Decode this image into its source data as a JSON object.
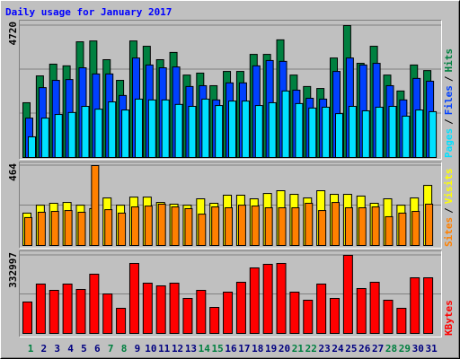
{
  "chart_data": [
    {
      "type": "bar",
      "title": "Daily usage for January 2017",
      "ylim": [
        0,
        4720
      ],
      "yticks": [
        4720
      ],
      "legend_separator": "/",
      "series": [
        {
          "name": "Hits",
          "color": "#008040",
          "values": [
            1960,
            2920,
            3340,
            3280,
            4140,
            4170,
            3500,
            2760,
            4170,
            3980,
            3500,
            3760,
            2950,
            3020,
            2570,
            3080,
            3080,
            3690,
            3690,
            4210,
            2950,
            2540,
            2470,
            3560,
            4720,
            3370,
            3980,
            2950,
            2380,
            3310,
            3110
          ]
        },
        {
          "name": "Files",
          "color": "#0040ff",
          "values": [
            1410,
            2500,
            2760,
            2790,
            3210,
            2990,
            2990,
            2220,
            3560,
            3310,
            3210,
            3240,
            2540,
            2570,
            2060,
            2670,
            2670,
            3280,
            3470,
            3440,
            2410,
            2120,
            2090,
            3080,
            3560,
            3310,
            3370,
            2570,
            2060,
            2830,
            2730
          ]
        },
        {
          "name": "Pages",
          "color": "#00e0ff",
          "values": [
            740,
            1410,
            1540,
            1610,
            1830,
            1730,
            1990,
            1700,
            2090,
            2060,
            2060,
            1900,
            1830,
            2090,
            1860,
            2020,
            2020,
            1860,
            1960,
            2380,
            1930,
            1770,
            1800,
            1570,
            1830,
            1670,
            1800,
            1830,
            1480,
            1700,
            1640
          ]
        }
      ]
    },
    {
      "type": "bar",
      "ylim": [
        0,
        464
      ],
      "yticks": [
        464
      ],
      "legend_separator": "/",
      "series": [
        {
          "name": "Visits",
          "color": "#ffff00",
          "values": [
            188,
            234,
            245,
            250,
            234,
            214,
            276,
            234,
            281,
            281,
            250,
            240,
            234,
            271,
            245,
            292,
            292,
            271,
            302,
            318,
            297,
            276,
            318,
            297,
            297,
            287,
            245,
            271,
            234,
            276,
            349
          ]
        },
        {
          "name": "Sites",
          "color": "#ff8000",
          "values": [
            162,
            193,
            198,
            203,
            193,
            464,
            208,
            188,
            224,
            229,
            240,
            224,
            214,
            182,
            224,
            219,
            234,
            229,
            219,
            219,
            219,
            245,
            203,
            250,
            219,
            219,
            224,
            167,
            188,
            198,
            240
          ]
        }
      ]
    },
    {
      "type": "bar",
      "ylim": [
        0,
        332997
      ],
      "yticks": [
        332997
      ],
      "series": [
        {
          "name": "KBytes",
          "color": "#ff0000",
          "values": [
            134000,
            210500,
            183700,
            210500,
            187600,
            252600,
            168400,
            107200,
            298600,
            214300,
            202900,
            214300,
            149300,
            183700,
            111000,
            176100,
            218200,
            279400,
            294700,
            298600,
            176100,
            141600,
            210500,
            149300,
            332997,
            191400,
            218200,
            141600,
            107200,
            237300,
            237300
          ]
        }
      ],
      "categories": [
        "1",
        "2",
        "3",
        "4",
        "5",
        "6",
        "7",
        "8",
        "9",
        "10",
        "11",
        "12",
        "13",
        "14",
        "15",
        "16",
        "17",
        "18",
        "19",
        "20",
        "21",
        "22",
        "23",
        "24",
        "25",
        "26",
        "27",
        "28",
        "29",
        "30",
        "31"
      ],
      "category_colors": [
        "#008040",
        "#000080",
        "#000080",
        "#000080",
        "#000080",
        "#000080",
        "#008040",
        "#008040",
        "#000080",
        "#000080",
        "#000080",
        "#000080",
        "#000080",
        "#008040",
        "#008040",
        "#000080",
        "#000080",
        "#000080",
        "#000080",
        "#000080",
        "#008040",
        "#008040",
        "#000080",
        "#000080",
        "#000080",
        "#000080",
        "#000080",
        "#008040",
        "#008040",
        "#000080",
        "#000080"
      ]
    }
  ]
}
